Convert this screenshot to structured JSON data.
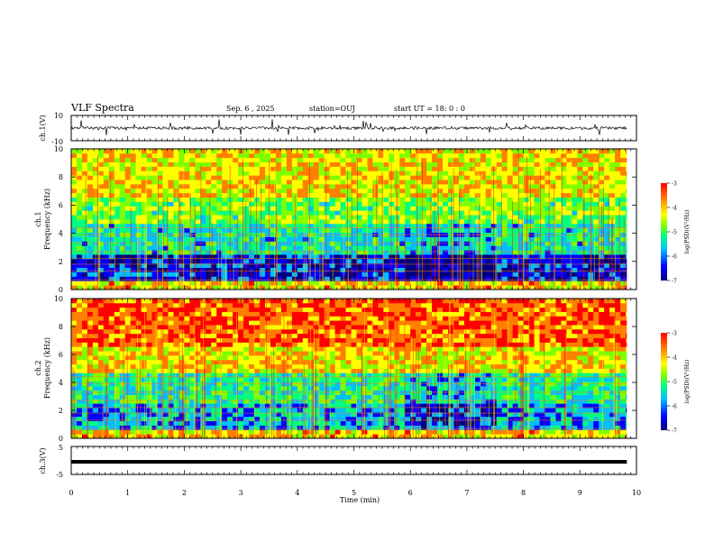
{
  "header": {
    "title": "VLF Spectra",
    "date": "Sep. 6 , 2025",
    "station": "station=OUJ",
    "start": "start UT = 18: 0 : 0"
  },
  "colors": {
    "colormap": [
      "#00007f",
      "#0000ff",
      "#00bfff",
      "#00ff7f",
      "#7fff00",
      "#ffff00",
      "#ff7f00",
      "#ff0000"
    ],
    "trace": "#000000"
  },
  "chart_data": [
    {
      "type": "line",
      "ylabel": "ch.1(V)",
      "ylim": [
        -10,
        10
      ],
      "yticks": [
        "10",
        "-10"
      ],
      "x_range": [
        0,
        10
      ],
      "trace_level": 0,
      "data_until": 9.83
    },
    {
      "type": "heatmap",
      "ylabel": "ch.1",
      "ylabel2": "Frequency (kHz)",
      "ylim": [
        0,
        10
      ],
      "yticks": [
        "10",
        "8",
        "6",
        "4",
        "2",
        "0"
      ],
      "colorbar": {
        "label": "log(PSD)(V²/Hz)",
        "range": [
          -7,
          -3
        ],
        "ticks": [
          "-3",
          "-4",
          "-5",
          "-6",
          "-7"
        ]
      }
    },
    {
      "type": "heatmap",
      "ylabel": "ch.2",
      "ylabel2": "Frequency (kHz)",
      "ylim": [
        0,
        10
      ],
      "yticks": [
        "10",
        "8",
        "6",
        "4",
        "2",
        "0"
      ],
      "colorbar": {
        "label": "log(PSD)(V²/Hz)",
        "range": [
          -7,
          -3
        ],
        "ticks": [
          "-3",
          "-4",
          "-5",
          "-6",
          "-7"
        ]
      }
    },
    {
      "type": "line",
      "ylabel": "ch.3(V)",
      "ylim": [
        -5,
        5
      ],
      "yticks": [
        "5",
        "-5"
      ],
      "trace_level": -0.5,
      "data_until": 9.83,
      "xlabel": "Time (min)",
      "xlim": [
        0,
        10
      ],
      "xticks": [
        "0",
        "1",
        "2",
        "3",
        "4",
        "5",
        "6",
        "7",
        "8",
        "9",
        "10"
      ]
    }
  ]
}
